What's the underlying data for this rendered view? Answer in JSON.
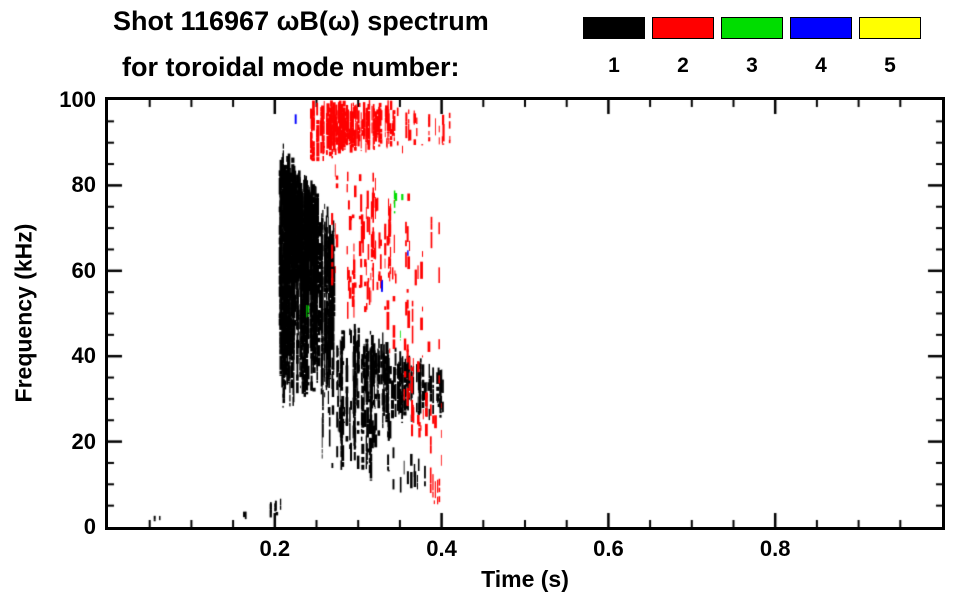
{
  "chart_data": {
    "type": "scatter",
    "title": "Shot 116967 ωB(ω) spectrum",
    "subtitle": "for toroidal mode number:",
    "xlabel": "Time (s)",
    "ylabel": "Frequency (kHz)",
    "xlim": [
      0.0,
      1.0
    ],
    "ylim": [
      0,
      100
    ],
    "xticks": [
      "0.2",
      "0.4",
      "0.6",
      "0.8"
    ],
    "xtick_values": [
      0.2,
      0.4,
      0.6,
      0.8
    ],
    "yticks": [
      "0",
      "20",
      "40",
      "60",
      "80",
      "100"
    ],
    "ytick_values": [
      0,
      20,
      40,
      60,
      80,
      100
    ],
    "x_minor_step": 0.05,
    "y_minor_step": 5,
    "grid": false,
    "legend_position": "top-right",
    "legend": [
      {
        "label": "1",
        "color": "#000000"
      },
      {
        "label": "2",
        "color": "#ff0000"
      },
      {
        "label": "3",
        "color": "#00dd00"
      },
      {
        "label": "4",
        "color": "#0000ff"
      },
      {
        "label": "5",
        "color": "#ffff00"
      }
    ],
    "series": [
      {
        "name": "1",
        "color": "#000000",
        "clusters": [
          {
            "t0": 0.055,
            "t1": 0.068,
            "fb0": 1,
            "fb1": 1,
            "ft0": 3,
            "ft1": 2.5,
            "n": 3,
            "d": 0.9,
            "w": 1.2
          },
          {
            "t0": 0.163,
            "t1": 0.175,
            "fb0": 1.5,
            "fb1": 2,
            "ft0": 4,
            "ft1": 3.5,
            "n": 3,
            "d": 0.9,
            "w": 1.4
          },
          {
            "t0": 0.19,
            "t1": 0.207,
            "fb0": 2,
            "fb1": 2.5,
            "ft0": 6,
            "ft1": 7,
            "n": 6,
            "d": 0.95,
            "w": 2.0
          },
          {
            "t0": 0.206,
            "t1": 0.272,
            "fb0": 27,
            "fb1": 30,
            "ft0": 91,
            "ft1": 74,
            "n": 120,
            "d": 0.72,
            "w": 2.6
          },
          {
            "t0": 0.21,
            "t1": 0.252,
            "fb0": 52,
            "fb1": 56,
            "ft0": 87,
            "ft1": 80,
            "n": 55,
            "d": 0.95,
            "w": 3.0
          },
          {
            "t0": 0.256,
            "t1": 0.34,
            "fb0": 13,
            "fb1": 10,
            "ft0": 50,
            "ft1": 46,
            "n": 60,
            "d": 0.5,
            "w": 2.2
          },
          {
            "t0": 0.295,
            "t1": 0.335,
            "fb0": 27,
            "fb1": 28,
            "ft0": 46,
            "ft1": 44,
            "n": 30,
            "d": 0.65,
            "w": 2.4
          },
          {
            "t0": 0.33,
            "t1": 0.402,
            "fb0": 23,
            "fb1": 25,
            "ft0": 44,
            "ft1": 37,
            "n": 55,
            "d": 0.7,
            "w": 2.6
          },
          {
            "t0": 0.335,
            "t1": 0.388,
            "fb0": 6,
            "fb1": 8,
            "ft0": 20,
            "ft1": 15,
            "n": 16,
            "d": 0.35,
            "w": 1.8
          }
        ]
      },
      {
        "name": "2",
        "color": "#ff0000",
        "clusters": [
          {
            "t0": 0.243,
            "t1": 0.345,
            "fb0": 85,
            "fb1": 89,
            "ft0": 100,
            "ft1": 100,
            "n": 95,
            "d": 0.8,
            "w": 2.6
          },
          {
            "t0": 0.345,
            "t1": 0.412,
            "fb0": 87,
            "fb1": 89,
            "ft0": 99,
            "ft1": 97,
            "n": 22,
            "d": 0.5,
            "w": 2.2
          },
          {
            "t0": 0.265,
            "t1": 0.4,
            "fb0": 45,
            "fb1": 30,
            "ft0": 93,
            "ft1": 72,
            "n": 55,
            "d": 0.22,
            "w": 2.0
          },
          {
            "t0": 0.3,
            "t1": 0.35,
            "fb0": 55,
            "fb1": 50,
            "ft0": 85,
            "ft1": 80,
            "n": 25,
            "d": 0.3,
            "w": 2.0
          },
          {
            "t0": 0.355,
            "t1": 0.405,
            "fb0": 20,
            "fb1": 8,
            "ft0": 50,
            "ft1": 30,
            "n": 22,
            "d": 0.3,
            "w": 2.0
          },
          {
            "t0": 0.383,
            "t1": 0.4,
            "fb0": 4,
            "fb1": 5,
            "ft0": 15,
            "ft1": 11,
            "n": 7,
            "d": 0.5,
            "w": 1.8
          }
        ]
      },
      {
        "name": "3",
        "color": "#00dd00",
        "clusters": [
          {
            "t0": 0.238,
            "t1": 0.246,
            "fb0": 48,
            "fb1": 49,
            "ft0": 52,
            "ft1": 53,
            "n": 2,
            "d": 0.8,
            "w": 1.6
          },
          {
            "t0": 0.34,
            "t1": 0.353,
            "fb0": 72,
            "fb1": 74,
            "ft0": 80,
            "ft1": 78,
            "n": 3,
            "d": 0.6,
            "w": 1.6
          },
          {
            "t0": 0.348,
            "t1": 0.357,
            "fb0": 42,
            "fb1": 43,
            "ft0": 47,
            "ft1": 46,
            "n": 2,
            "d": 0.6,
            "w": 1.6
          },
          {
            "t0": 0.302,
            "t1": 0.308,
            "fb0": 57,
            "fb1": 57,
            "ft0": 60,
            "ft1": 60,
            "n": 1,
            "d": 0.8,
            "w": 1.4
          }
        ]
      },
      {
        "name": "4",
        "color": "#0000ff",
        "clusters": [
          {
            "t0": 0.322,
            "t1": 0.33,
            "fb0": 55,
            "fb1": 55,
            "ft0": 59,
            "ft1": 58,
            "n": 2,
            "d": 0.7,
            "w": 1.6
          },
          {
            "t0": 0.355,
            "t1": 0.366,
            "fb0": 61,
            "fb1": 62,
            "ft0": 66,
            "ft1": 65,
            "n": 2,
            "d": 0.6,
            "w": 1.6
          },
          {
            "t0": 0.225,
            "t1": 0.232,
            "fb0": 94,
            "fb1": 94,
            "ft0": 97,
            "ft1": 97,
            "n": 1,
            "d": 0.8,
            "w": 1.4
          },
          {
            "t0": 0.3,
            "t1": 0.307,
            "fb0": 10,
            "fb1": 10,
            "ft0": 13,
            "ft1": 13,
            "n": 1,
            "d": 0.8,
            "w": 1.4
          }
        ]
      },
      {
        "name": "5",
        "color": "#ffff00",
        "clusters": []
      }
    ]
  }
}
